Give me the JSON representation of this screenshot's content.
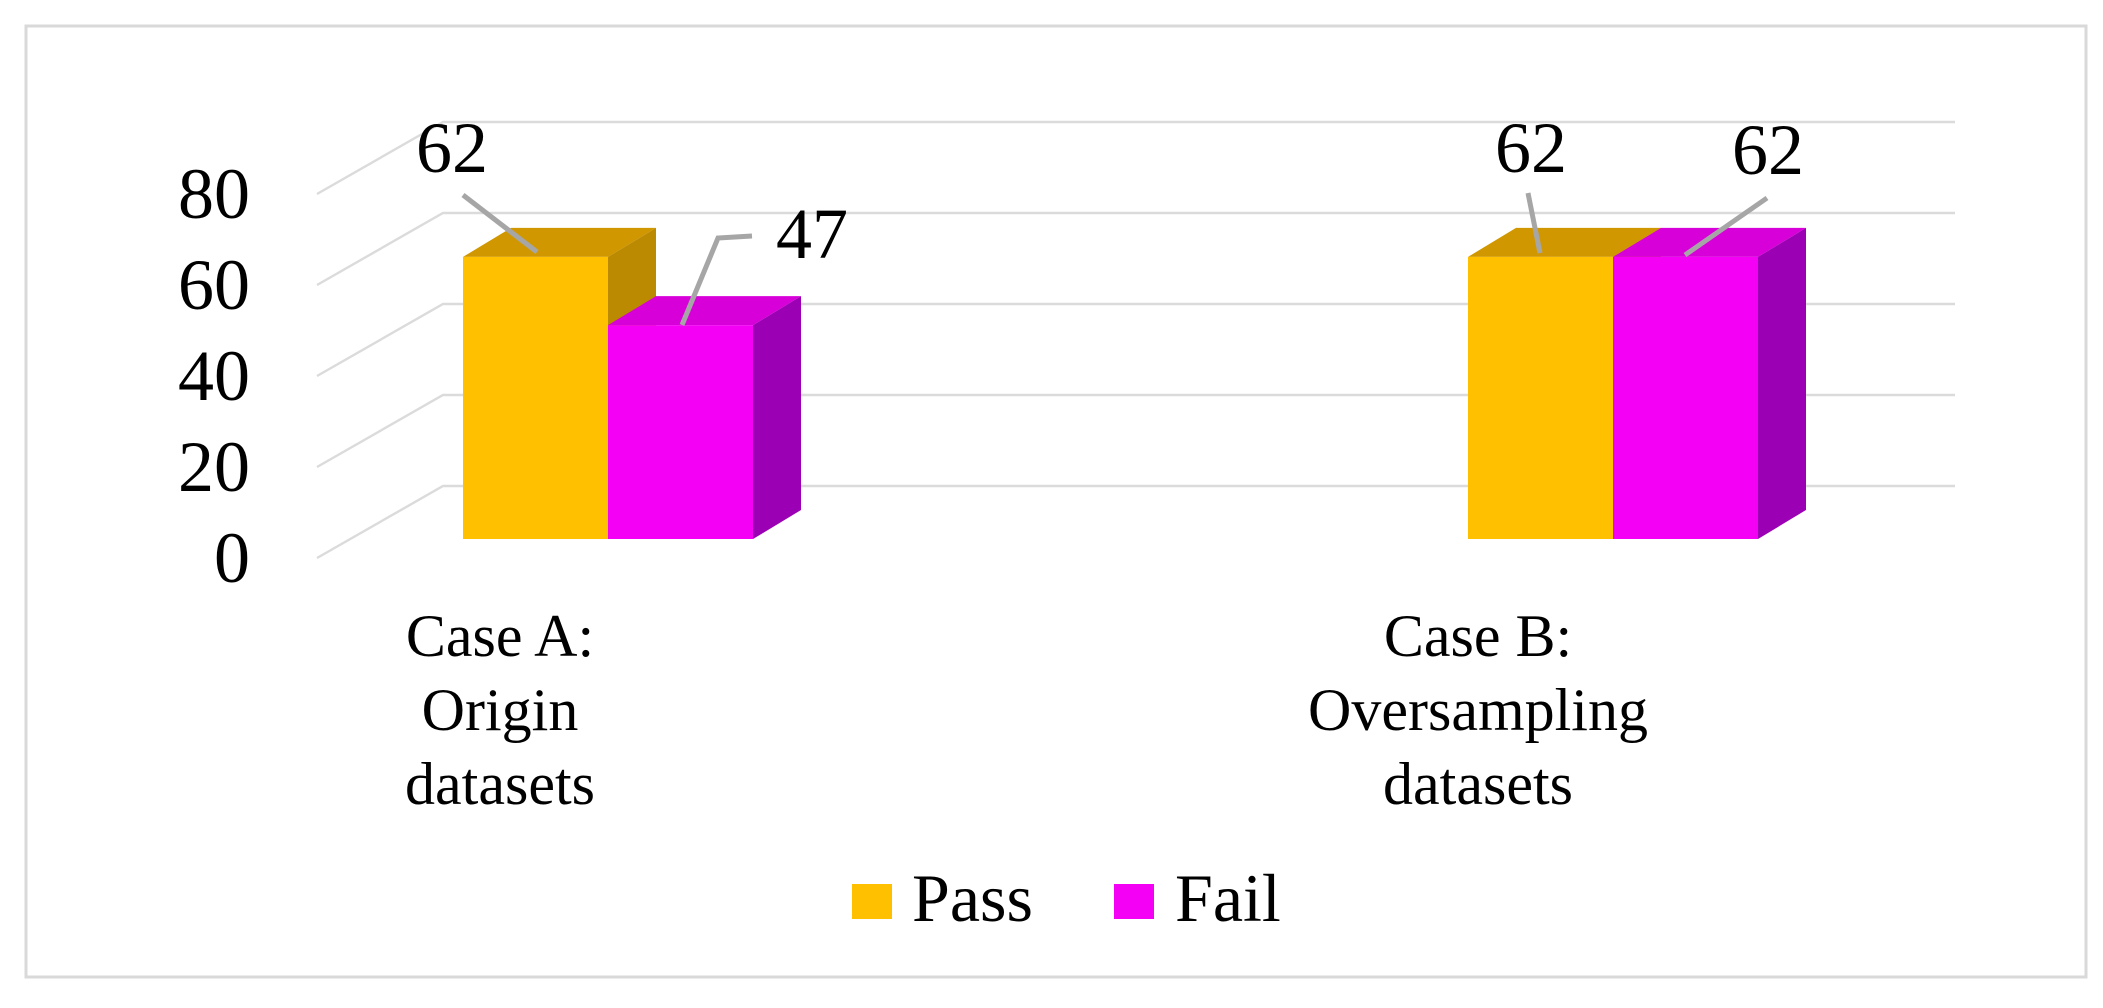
{
  "chart_data": {
    "type": "bar",
    "projection": "3d-clustered-column",
    "title": "",
    "xlabel": "",
    "ylabel": "",
    "categories": [
      "Case A: Origin datasets",
      "Case B: Oversampling datasets"
    ],
    "category_label_lines": [
      [
        "Case A:",
        "Origin",
        "datasets"
      ],
      [
        "Case B:",
        "Oversampling",
        "datasets"
      ]
    ],
    "series": [
      {
        "name": "Pass",
        "values": [
          62,
          62
        ],
        "color": "#FFC000",
        "color_top": "#D09700",
        "color_side": "#BC8A00"
      },
      {
        "name": "Fail",
        "values": [
          47,
          62
        ],
        "color": "#F400F4",
        "color_top": "#D800D8",
        "color_side": "#9C00B4"
      }
    ],
    "data_labels_shown": true,
    "yticks": [
      0,
      20,
      40,
      60,
      80
    ],
    "ylim": [
      0,
      80
    ],
    "grid": true,
    "legend_position": "bottom",
    "colors": {
      "background": "#FFFFFF",
      "frame_border": "#D9D9D9",
      "gridline": "#DBDBDB",
      "leader_line": "#A6A6A6",
      "text": "#000000"
    }
  }
}
